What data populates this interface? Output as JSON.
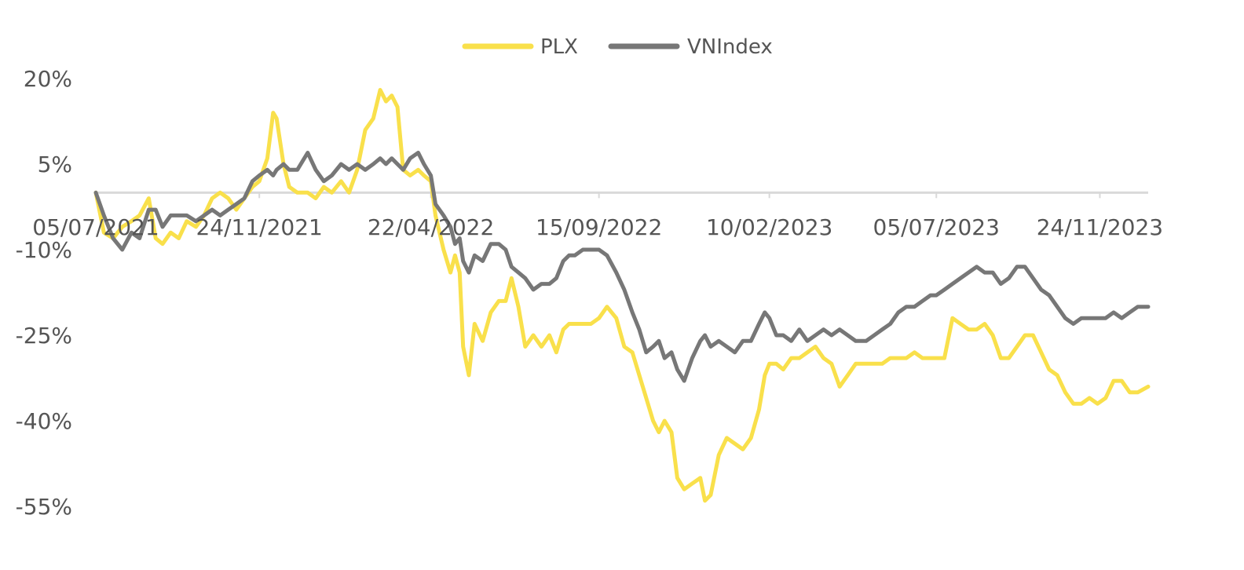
{
  "chart_data": {
    "type": "line",
    "title": "",
    "xlabel": "",
    "ylabel": "",
    "legend_position": "top-center",
    "grid": false,
    "ylim": [
      -55,
      20
    ],
    "y_ticks": [
      20,
      5,
      -10,
      -25,
      -40,
      -55
    ],
    "y_tick_labels": [
      "20%",
      "5%",
      "-10%",
      "-25%",
      "-40%",
      "-55%"
    ],
    "x_range": [
      "2021-07-05",
      "2024-01-05"
    ],
    "x_ticks": [
      "2021-07-05",
      "2021-11-24",
      "2022-04-22",
      "2022-09-15",
      "2023-02-10",
      "2023-07-05",
      "2023-11-24"
    ],
    "x_tick_labels": [
      "05/07/2021",
      "24/11/2021",
      "22/04/2022",
      "15/09/2022",
      "10/02/2023",
      "05/07/2023",
      "24/11/2023"
    ],
    "series": [
      {
        "name": "PLX",
        "color": "#F9E04B",
        "points": [
          [
            "2021-07-05",
            0
          ],
          [
            "2021-07-12",
            -7
          ],
          [
            "2021-07-20",
            -8
          ],
          [
            "2021-07-28",
            -6
          ],
          [
            "2021-08-05",
            -5
          ],
          [
            "2021-08-12",
            -4
          ],
          [
            "2021-08-20",
            -1
          ],
          [
            "2021-08-26",
            -8
          ],
          [
            "2021-09-01",
            -9
          ],
          [
            "2021-09-08",
            -7
          ],
          [
            "2021-09-15",
            -8
          ],
          [
            "2021-09-22",
            -5
          ],
          [
            "2021-09-30",
            -6
          ],
          [
            "2021-10-07",
            -4
          ],
          [
            "2021-10-14",
            -1
          ],
          [
            "2021-10-21",
            0
          ],
          [
            "2021-10-28",
            -1
          ],
          [
            "2021-11-04",
            -3
          ],
          [
            "2021-11-11",
            -1
          ],
          [
            "2021-11-18",
            1
          ],
          [
            "2021-11-24",
            2
          ],
          [
            "2021-12-01",
            6
          ],
          [
            "2021-12-06",
            14
          ],
          [
            "2021-12-09",
            13
          ],
          [
            "2021-12-15",
            5
          ],
          [
            "2021-12-20",
            1
          ],
          [
            "2021-12-27",
            0
          ],
          [
            "2022-01-05",
            0
          ],
          [
            "2022-01-12",
            -1
          ],
          [
            "2022-01-19",
            1
          ],
          [
            "2022-01-26",
            0
          ],
          [
            "2022-02-03",
            2
          ],
          [
            "2022-02-10",
            0
          ],
          [
            "2022-02-17",
            4
          ],
          [
            "2022-02-24",
            11
          ],
          [
            "2022-03-03",
            13
          ],
          [
            "2022-03-09",
            18
          ],
          [
            "2022-03-14",
            16
          ],
          [
            "2022-03-19",
            17
          ],
          [
            "2022-03-24",
            15
          ],
          [
            "2022-03-29",
            4
          ],
          [
            "2022-04-04",
            3
          ],
          [
            "2022-04-11",
            4
          ],
          [
            "2022-04-16",
            3
          ],
          [
            "2022-04-22",
            2
          ],
          [
            "2022-04-26",
            -4
          ],
          [
            "2022-05-03",
            -10
          ],
          [
            "2022-05-09",
            -14
          ],
          [
            "2022-05-13",
            -11
          ],
          [
            "2022-05-17",
            -14
          ],
          [
            "2022-05-20",
            -27
          ],
          [
            "2022-05-25",
            -32
          ],
          [
            "2022-05-30",
            -23
          ],
          [
            "2022-06-06",
            -26
          ],
          [
            "2022-06-13",
            -21
          ],
          [
            "2022-06-20",
            -19
          ],
          [
            "2022-06-26",
            -19
          ],
          [
            "2022-07-01",
            -15
          ],
          [
            "2022-07-07",
            -20
          ],
          [
            "2022-07-13",
            -27
          ],
          [
            "2022-07-20",
            -25
          ],
          [
            "2022-07-27",
            -27
          ],
          [
            "2022-08-03",
            -25
          ],
          [
            "2022-08-09",
            -28
          ],
          [
            "2022-08-15",
            -24
          ],
          [
            "2022-08-20",
            -23
          ],
          [
            "2022-08-25",
            -23
          ],
          [
            "2022-09-01",
            -23
          ],
          [
            "2022-09-08",
            -23
          ],
          [
            "2022-09-15",
            -22
          ],
          [
            "2022-09-22",
            -20
          ],
          [
            "2022-09-30",
            -22
          ],
          [
            "2022-10-07",
            -27
          ],
          [
            "2022-10-14",
            -28
          ],
          [
            "2022-10-20",
            -32
          ],
          [
            "2022-10-26",
            -36
          ],
          [
            "2022-11-01",
            -40
          ],
          [
            "2022-11-06",
            -42
          ],
          [
            "2022-11-11",
            -40
          ],
          [
            "2022-11-17",
            -42
          ],
          [
            "2022-11-22",
            -50
          ],
          [
            "2022-11-28",
            -52
          ],
          [
            "2022-12-05",
            -51
          ],
          [
            "2022-12-12",
            -50
          ],
          [
            "2022-12-16",
            -54
          ],
          [
            "2022-12-21",
            -53
          ],
          [
            "2022-12-28",
            -46
          ],
          [
            "2023-01-04",
            -43
          ],
          [
            "2023-01-11",
            -44
          ],
          [
            "2023-01-18",
            -45
          ],
          [
            "2023-01-25",
            -43
          ],
          [
            "2023-02-01",
            -38
          ],
          [
            "2023-02-06",
            -32
          ],
          [
            "2023-02-10",
            -30
          ],
          [
            "2023-02-16",
            -30
          ],
          [
            "2023-02-22",
            -31
          ],
          [
            "2023-03-01",
            -29
          ],
          [
            "2023-03-08",
            -29
          ],
          [
            "2023-03-15",
            -28
          ],
          [
            "2023-03-22",
            -27
          ],
          [
            "2023-03-29",
            -29
          ],
          [
            "2023-04-05",
            -30
          ],
          [
            "2023-04-12",
            -34
          ],
          [
            "2023-04-19",
            -32
          ],
          [
            "2023-04-26",
            -30
          ],
          [
            "2023-05-05",
            -30
          ],
          [
            "2023-05-12",
            -30
          ],
          [
            "2023-05-19",
            -30
          ],
          [
            "2023-05-26",
            -29
          ],
          [
            "2023-06-02",
            -29
          ],
          [
            "2023-06-09",
            -29
          ],
          [
            "2023-06-16",
            -28
          ],
          [
            "2023-06-23",
            -29
          ],
          [
            "2023-06-30",
            -29
          ],
          [
            "2023-07-05",
            -29
          ],
          [
            "2023-07-12",
            -29
          ],
          [
            "2023-07-19",
            -22
          ],
          [
            "2023-07-26",
            -23
          ],
          [
            "2023-08-02",
            -24
          ],
          [
            "2023-08-09",
            -24
          ],
          [
            "2023-08-16",
            -23
          ],
          [
            "2023-08-23",
            -25
          ],
          [
            "2023-08-30",
            -29
          ],
          [
            "2023-09-06",
            -29
          ],
          [
            "2023-09-13",
            -27
          ],
          [
            "2023-09-20",
            -25
          ],
          [
            "2023-09-27",
            -25
          ],
          [
            "2023-10-04",
            -28
          ],
          [
            "2023-10-11",
            -31
          ],
          [
            "2023-10-18",
            -32
          ],
          [
            "2023-10-25",
            -35
          ],
          [
            "2023-11-01",
            -37
          ],
          [
            "2023-11-08",
            -37
          ],
          [
            "2023-11-15",
            -36
          ],
          [
            "2023-11-22",
            -37
          ],
          [
            "2023-11-29",
            -36
          ],
          [
            "2023-12-06",
            -33
          ],
          [
            "2023-12-13",
            -33
          ],
          [
            "2023-12-20",
            -35
          ],
          [
            "2023-12-27",
            -35
          ],
          [
            "2024-01-05",
            -34
          ]
        ]
      },
      {
        "name": "VNIndex",
        "color": "#777777",
        "points": [
          [
            "2021-07-05",
            0
          ],
          [
            "2021-07-12",
            -4
          ],
          [
            "2021-07-20",
            -8
          ],
          [
            "2021-07-28",
            -10
          ],
          [
            "2021-08-05",
            -7
          ],
          [
            "2021-08-12",
            -8
          ],
          [
            "2021-08-20",
            -3
          ],
          [
            "2021-08-26",
            -3
          ],
          [
            "2021-09-01",
            -6
          ],
          [
            "2021-09-08",
            -4
          ],
          [
            "2021-09-15",
            -4
          ],
          [
            "2021-09-22",
            -4
          ],
          [
            "2021-09-30",
            -5
          ],
          [
            "2021-10-07",
            -4
          ],
          [
            "2021-10-14",
            -3
          ],
          [
            "2021-10-21",
            -4
          ],
          [
            "2021-10-28",
            -3
          ],
          [
            "2021-11-04",
            -2
          ],
          [
            "2021-11-11",
            -1
          ],
          [
            "2021-11-18",
            2
          ],
          [
            "2021-11-24",
            3
          ],
          [
            "2021-12-01",
            4
          ],
          [
            "2021-12-06",
            3
          ],
          [
            "2021-12-09",
            4
          ],
          [
            "2021-12-15",
            5
          ],
          [
            "2021-12-20",
            4
          ],
          [
            "2021-12-27",
            4
          ],
          [
            "2022-01-05",
            7
          ],
          [
            "2022-01-12",
            4
          ],
          [
            "2022-01-19",
            2
          ],
          [
            "2022-01-26",
            3
          ],
          [
            "2022-02-03",
            5
          ],
          [
            "2022-02-10",
            4
          ],
          [
            "2022-02-17",
            5
          ],
          [
            "2022-02-24",
            4
          ],
          [
            "2022-03-03",
            5
          ],
          [
            "2022-03-09",
            6
          ],
          [
            "2022-03-14",
            5
          ],
          [
            "2022-03-19",
            6
          ],
          [
            "2022-03-24",
            5
          ],
          [
            "2022-03-29",
            4
          ],
          [
            "2022-04-04",
            6
          ],
          [
            "2022-04-11",
            7
          ],
          [
            "2022-04-16",
            5
          ],
          [
            "2022-04-22",
            3
          ],
          [
            "2022-04-26",
            -2
          ],
          [
            "2022-05-03",
            -4
          ],
          [
            "2022-05-09",
            -6
          ],
          [
            "2022-05-13",
            -9
          ],
          [
            "2022-05-17",
            -8
          ],
          [
            "2022-05-20",
            -12
          ],
          [
            "2022-05-25",
            -14
          ],
          [
            "2022-05-30",
            -11
          ],
          [
            "2022-06-06",
            -12
          ],
          [
            "2022-06-13",
            -9
          ],
          [
            "2022-06-20",
            -9
          ],
          [
            "2022-06-26",
            -10
          ],
          [
            "2022-07-01",
            -13
          ],
          [
            "2022-07-07",
            -14
          ],
          [
            "2022-07-13",
            -15
          ],
          [
            "2022-07-20",
            -17
          ],
          [
            "2022-07-27",
            -16
          ],
          [
            "2022-08-03",
            -16
          ],
          [
            "2022-08-09",
            -15
          ],
          [
            "2022-08-15",
            -12
          ],
          [
            "2022-08-20",
            -11
          ],
          [
            "2022-08-25",
            -11
          ],
          [
            "2022-09-01",
            -10
          ],
          [
            "2022-09-08",
            -10
          ],
          [
            "2022-09-15",
            -10
          ],
          [
            "2022-09-22",
            -11
          ],
          [
            "2022-09-30",
            -14
          ],
          [
            "2022-10-07",
            -17
          ],
          [
            "2022-10-14",
            -21
          ],
          [
            "2022-10-20",
            -24
          ],
          [
            "2022-10-26",
            -28
          ],
          [
            "2022-11-01",
            -27
          ],
          [
            "2022-11-06",
            -26
          ],
          [
            "2022-11-11",
            -29
          ],
          [
            "2022-11-17",
            -28
          ],
          [
            "2022-11-22",
            -31
          ],
          [
            "2022-11-28",
            -33
          ],
          [
            "2022-12-05",
            -29
          ],
          [
            "2022-12-12",
            -26
          ],
          [
            "2022-12-16",
            -25
          ],
          [
            "2022-12-21",
            -27
          ],
          [
            "2022-12-28",
            -26
          ],
          [
            "2023-01-04",
            -27
          ],
          [
            "2023-01-11",
            -28
          ],
          [
            "2023-01-18",
            -26
          ],
          [
            "2023-01-25",
            -26
          ],
          [
            "2023-02-01",
            -23
          ],
          [
            "2023-02-06",
            -21
          ],
          [
            "2023-02-10",
            -22
          ],
          [
            "2023-02-16",
            -25
          ],
          [
            "2023-02-22",
            -25
          ],
          [
            "2023-03-01",
            -26
          ],
          [
            "2023-03-08",
            -24
          ],
          [
            "2023-03-15",
            -26
          ],
          [
            "2023-03-22",
            -25
          ],
          [
            "2023-03-29",
            -24
          ],
          [
            "2023-04-05",
            -25
          ],
          [
            "2023-04-12",
            -24
          ],
          [
            "2023-04-19",
            -25
          ],
          [
            "2023-04-26",
            -26
          ],
          [
            "2023-05-05",
            -26
          ],
          [
            "2023-05-12",
            -25
          ],
          [
            "2023-05-19",
            -24
          ],
          [
            "2023-05-26",
            -23
          ],
          [
            "2023-06-02",
            -21
          ],
          [
            "2023-06-09",
            -20
          ],
          [
            "2023-06-16",
            -20
          ],
          [
            "2023-06-23",
            -19
          ],
          [
            "2023-06-30",
            -18
          ],
          [
            "2023-07-05",
            -18
          ],
          [
            "2023-07-12",
            -17
          ],
          [
            "2023-07-19",
            -16
          ],
          [
            "2023-07-26",
            -15
          ],
          [
            "2023-08-02",
            -14
          ],
          [
            "2023-08-09",
            -13
          ],
          [
            "2023-08-16",
            -14
          ],
          [
            "2023-08-23",
            -14
          ],
          [
            "2023-08-30",
            -16
          ],
          [
            "2023-09-06",
            -15
          ],
          [
            "2023-09-13",
            -13
          ],
          [
            "2023-09-20",
            -13
          ],
          [
            "2023-09-27",
            -15
          ],
          [
            "2023-10-04",
            -17
          ],
          [
            "2023-10-11",
            -18
          ],
          [
            "2023-10-18",
            -20
          ],
          [
            "2023-10-25",
            -22
          ],
          [
            "2023-11-01",
            -23
          ],
          [
            "2023-11-08",
            -22
          ],
          [
            "2023-11-15",
            -22
          ],
          [
            "2023-11-22",
            -22
          ],
          [
            "2023-11-29",
            -22
          ],
          [
            "2023-12-06",
            -21
          ],
          [
            "2023-12-13",
            -22
          ],
          [
            "2023-12-20",
            -21
          ],
          [
            "2023-12-27",
            -20
          ],
          [
            "2024-01-05",
            -20
          ]
        ]
      }
    ]
  }
}
